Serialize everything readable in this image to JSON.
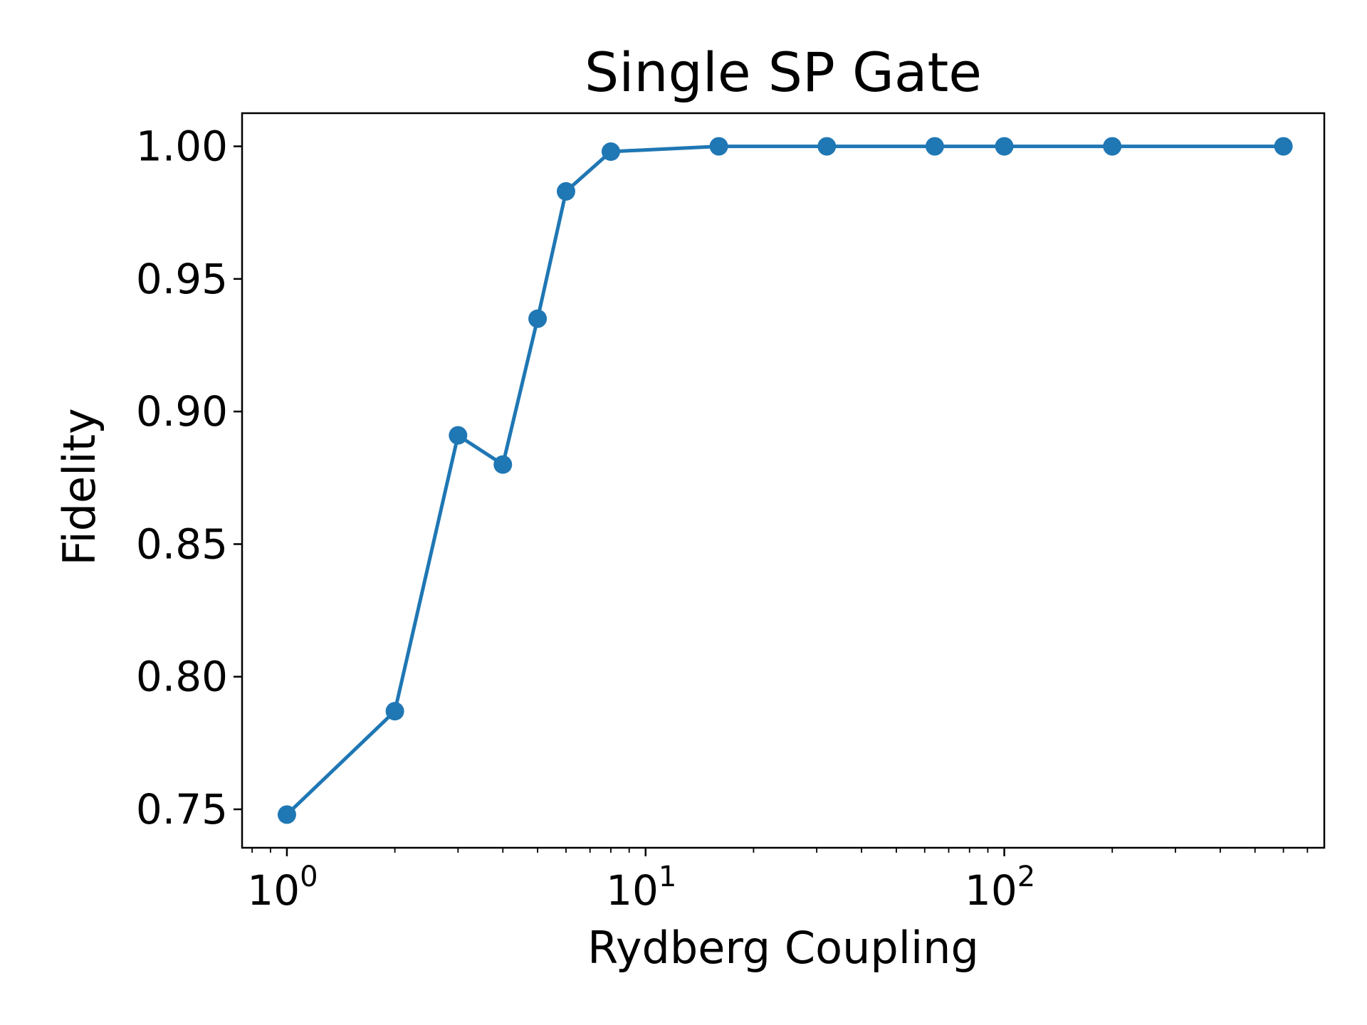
{
  "chart_data": {
    "type": "line",
    "title": "Single SP Gate",
    "xlabel": "Rydberg Coupling",
    "ylabel": "Fidelity",
    "xscale": "log",
    "xlim": [
      0.75,
      780
    ],
    "ylim": [
      0.7355,
      1.0125
    ],
    "xticks": [
      {
        "value": 1,
        "base": "10",
        "exp": "0"
      },
      {
        "value": 10,
        "base": "10",
        "exp": "1"
      },
      {
        "value": 100,
        "base": "10",
        "exp": "2"
      }
    ],
    "yticks": [
      {
        "value": 0.75,
        "label": "0.75"
      },
      {
        "value": 0.8,
        "label": "0.80"
      },
      {
        "value": 0.85,
        "label": "0.85"
      },
      {
        "value": 0.9,
        "label": "0.90"
      },
      {
        "value": 0.95,
        "label": "0.95"
      },
      {
        "value": 1.0,
        "label": "1.00"
      }
    ],
    "grid": false,
    "color": "#1f77b4",
    "series": [
      {
        "x": [
          1,
          2,
          3,
          4,
          5,
          6,
          8,
          16,
          32,
          64,
          100,
          200,
          600
        ],
        "y": [
          0.748,
          0.787,
          0.891,
          0.88,
          0.935,
          0.983,
          0.998,
          1.0,
          1.0,
          1.0,
          1.0,
          1.0,
          1.0
        ]
      }
    ]
  }
}
